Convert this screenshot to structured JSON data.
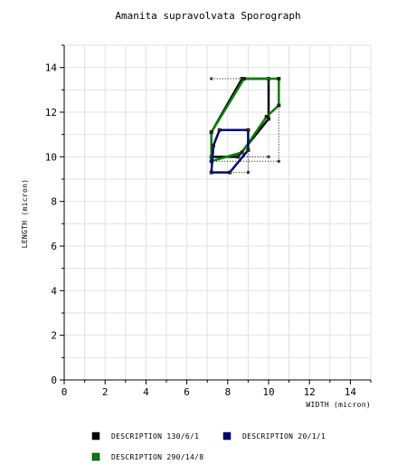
{
  "chart_data": {
    "type": "line",
    "title": "Amanita supravolvata Sporograph",
    "xlabel": "WIDTH (micron)",
    "ylabel": "LENGTH (micron)",
    "xlim": [
      0,
      15
    ],
    "ylim": [
      0,
      15
    ],
    "x_ticks": [
      "0",
      "2",
      "4",
      "6",
      "8",
      "10",
      "12",
      "14"
    ],
    "y_ticks": [
      "0",
      "2",
      "4",
      "6",
      "8",
      "10",
      "12",
      "14"
    ],
    "grid": true,
    "legend_position": "bottom",
    "series": [
      {
        "name": "DESCRIPTION 130/6/1",
        "color": "#000000",
        "polygon": [
          [
            7.2,
            11.1
          ],
          [
            8.7,
            13.5
          ],
          [
            10.0,
            13.5
          ],
          [
            10.0,
            11.7
          ],
          [
            8.5,
            10.0
          ],
          [
            7.2,
            10.0
          ]
        ]
      },
      {
        "name": "DESCRIPTION 20/1/1",
        "color": "#00007f",
        "polygon": [
          [
            7.3,
            10.5
          ],
          [
            7.6,
            11.2
          ],
          [
            9.0,
            11.2
          ],
          [
            9.0,
            10.3
          ],
          [
            8.1,
            9.3
          ],
          [
            7.2,
            9.3
          ]
        ]
      },
      {
        "name": "DESCRIPTION 290/14/8",
        "color": "#008000",
        "polygon": [
          [
            7.2,
            11.1
          ],
          [
            8.8,
            13.5
          ],
          [
            10.5,
            13.5
          ],
          [
            10.5,
            12.3
          ],
          [
            9.9,
            11.8
          ],
          [
            8.7,
            10.2
          ],
          [
            7.2,
            9.8
          ]
        ]
      }
    ],
    "range_boxes": [
      [
        [
          7.2,
          13.5
        ],
        [
          10.5,
          13.5
        ],
        [
          10.5,
          9.8
        ],
        [
          7.2,
          9.8
        ]
      ],
      [
        [
          7.2,
          10.0
        ],
        [
          10.0,
          10.0
        ]
      ],
      [
        [
          7.2,
          9.3
        ],
        [
          9.0,
          9.3
        ],
        [
          9.0,
          11.2
        ]
      ]
    ]
  }
}
